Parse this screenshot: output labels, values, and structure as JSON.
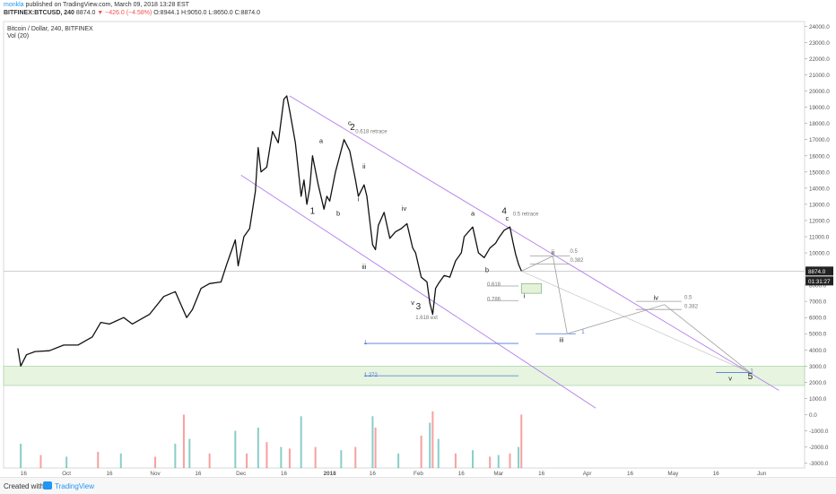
{
  "header": {
    "author": "monkla",
    "published": "published on TradingView.com, March 09, 2018 13:28 EST",
    "symbol": "BITFINEX:BTCUSD, 240",
    "last": "8874.0",
    "change": "▼ −426.0 (−4.58%)",
    "ohlc": "O:8944.1 H:9050.0 L:8650.0 C:8874.0"
  },
  "footer": {
    "created_with": "Created with",
    "brand": "TradingView"
  },
  "colors": {
    "up": "#26a69a",
    "down": "#ef5350",
    "channel": "#b37feb",
    "fib": "#4f7ad6",
    "band": "#e6f4e0",
    "projection": "#9e9e9e",
    "price_line": "#bdbdbd"
  },
  "chart_data": {
    "type": "line",
    "title": "Bitcoin / Dollar, 240, BITFINEX",
    "subtitle": "Vol (20)",
    "price_tag": "8874.0",
    "countdown": "01:31:27",
    "x_ticks": [
      "16",
      "Oct",
      "16",
      "Nov",
      "16",
      "Dec",
      "16",
      "2018",
      "16",
      "Feb",
      "16",
      "Mar",
      "16",
      "Apr",
      "16",
      "May",
      "16",
      "Jun"
    ],
    "x_tick_dates": [
      "2017-09-16",
      "2017-10-01",
      "2017-10-16",
      "2017-11-01",
      "2017-11-16",
      "2017-12-01",
      "2017-12-16",
      "2018-01-01",
      "2018-01-16",
      "2018-02-01",
      "2018-02-16",
      "2018-03-01",
      "2018-03-16",
      "2018-04-01",
      "2018-04-16",
      "2018-05-01",
      "2018-05-16",
      "2018-06-01"
    ],
    "y_ticks": [
      24000,
      23000,
      22000,
      21000,
      20000,
      19000,
      18000,
      17000,
      16000,
      15000,
      14000,
      13000,
      12000,
      11000,
      10000,
      9000,
      8000,
      7000,
      6000,
      5000,
      4000,
      3000,
      2000,
      1000,
      0,
      -1000,
      -2000,
      -3000
    ],
    "y_tick_labels": [
      "24000.0",
      "23000.0",
      "22000.0",
      "21000.0",
      "20000.0",
      "19000.0",
      "18000.0",
      "17000.0",
      "16000.0",
      "15000.0",
      "14000.0",
      "13000.0",
      "12000.0",
      "11000.0",
      "10000.0",
      "9000.0",
      "8000.0",
      "7000.0",
      "6000.0",
      "5000.0",
      "4000.0",
      "3000.0",
      "2000.0",
      "1000.0",
      "0.0",
      "-1000.0",
      "-2000.0",
      "-3000.0"
    ],
    "ylim": [
      -3300,
      24300
    ],
    "price_series": [
      [
        "2017-09-14",
        4100
      ],
      [
        "2017-09-15",
        3000
      ],
      [
        "2017-09-17",
        3700
      ],
      [
        "2017-09-20",
        3900
      ],
      [
        "2017-09-25",
        3950
      ],
      [
        "2017-09-30",
        4300
      ],
      [
        "2017-10-05",
        4300
      ],
      [
        "2017-10-10",
        4800
      ],
      [
        "2017-10-13",
        5700
      ],
      [
        "2017-10-16",
        5600
      ],
      [
        "2017-10-21",
        6000
      ],
      [
        "2017-10-24",
        5600
      ],
      [
        "2017-10-30",
        6200
      ],
      [
        "2017-11-04",
        7300
      ],
      [
        "2017-11-08",
        7600
      ],
      [
        "2017-11-10",
        6800
      ],
      [
        "2017-11-12",
        6000
      ],
      [
        "2017-11-14",
        6500
      ],
      [
        "2017-11-17",
        7800
      ],
      [
        "2017-11-20",
        8100
      ],
      [
        "2017-11-24",
        8200
      ],
      [
        "2017-11-26",
        9300
      ],
      [
        "2017-11-29",
        10800
      ],
      [
        "2017-11-30",
        9200
      ],
      [
        "2017-12-02",
        11000
      ],
      [
        "2017-12-04",
        11500
      ],
      [
        "2017-12-06",
        13800
      ],
      [
        "2017-12-07",
        16500
      ],
      [
        "2017-12-08",
        15000
      ],
      [
        "2017-12-10",
        15300
      ],
      [
        "2017-12-12",
        17500
      ],
      [
        "2017-12-14",
        16800
      ],
      [
        "2017-12-16",
        19500
      ],
      [
        "2017-12-17",
        19700
      ],
      [
        "2017-12-18",
        18800
      ],
      [
        "2017-12-20",
        16800
      ],
      [
        "2017-12-22",
        13500
      ],
      [
        "2017-12-23",
        14500
      ],
      [
        "2017-12-24",
        13000
      ],
      [
        "2017-12-25",
        14000
      ],
      [
        "2017-12-26",
        16000
      ],
      [
        "2017-12-28",
        14200
      ],
      [
        "2017-12-30",
        12700
      ],
      [
        "2017-12-31",
        13500
      ],
      [
        "2018-01-01",
        13200
      ],
      [
        "2018-01-03",
        15000
      ],
      [
        "2018-01-06",
        17000
      ],
      [
        "2018-01-08",
        16300
      ],
      [
        "2018-01-10",
        14500
      ],
      [
        "2018-01-11",
        13500
      ],
      [
        "2018-01-13",
        14200
      ],
      [
        "2018-01-14",
        13500
      ],
      [
        "2018-01-16",
        10500
      ],
      [
        "2018-01-17",
        10200
      ],
      [
        "2018-01-18",
        11700
      ],
      [
        "2018-01-20",
        12500
      ],
      [
        "2018-01-22",
        10900
      ],
      [
        "2018-01-24",
        11300
      ],
      [
        "2018-01-26",
        11500
      ],
      [
        "2018-01-28",
        11800
      ],
      [
        "2018-01-30",
        10300
      ],
      [
        "2018-01-31",
        10000
      ],
      [
        "2018-02-02",
        8500
      ],
      [
        "2018-02-04",
        8200
      ],
      [
        "2018-02-05",
        6900
      ],
      [
        "2018-02-06",
        6200
      ],
      [
        "2018-02-07",
        7800
      ],
      [
        "2018-02-08",
        8100
      ],
      [
        "2018-02-10",
        8600
      ],
      [
        "2018-02-12",
        8500
      ],
      [
        "2018-02-14",
        9500
      ],
      [
        "2018-02-16",
        10000
      ],
      [
        "2018-02-17",
        11000
      ],
      [
        "2018-02-20",
        11600
      ],
      [
        "2018-02-22",
        10000
      ],
      [
        "2018-02-24",
        9700
      ],
      [
        "2018-02-26",
        10300
      ],
      [
        "2018-02-28",
        10600
      ],
      [
        "2018-03-01",
        10900
      ],
      [
        "2018-03-03",
        11400
      ],
      [
        "2018-03-05",
        11600
      ],
      [
        "2018-03-06",
        10700
      ],
      [
        "2018-03-07",
        9900
      ],
      [
        "2018-03-08",
        9300
      ],
      [
        "2018-03-09",
        8874
      ]
    ],
    "volume_series": [
      [
        "2017-09-15",
        1500
      ],
      [
        "2017-09-22",
        800
      ],
      [
        "2017-10-01",
        700
      ],
      [
        "2017-10-12",
        1000
      ],
      [
        "2017-10-20",
        900
      ],
      [
        "2017-11-01",
        700
      ],
      [
        "2017-11-08",
        1500
      ],
      [
        "2017-11-11",
        3300
      ],
      [
        "2017-11-13",
        1800
      ],
      [
        "2017-11-20",
        900
      ],
      [
        "2017-11-29",
        2300
      ],
      [
        "2017-12-03",
        900
      ],
      [
        "2017-12-07",
        2500
      ],
      [
        "2017-12-10",
        1600
      ],
      [
        "2017-12-15",
        1300
      ],
      [
        "2017-12-18",
        1200
      ],
      [
        "2017-12-22",
        3200
      ],
      [
        "2017-12-27",
        1300
      ],
      [
        "2018-01-05",
        1100
      ],
      [
        "2018-01-10",
        1300
      ],
      [
        "2018-01-16",
        3200
      ],
      [
        "2018-01-17",
        2500
      ],
      [
        "2018-01-25",
        900
      ],
      [
        "2018-02-02",
        2000
      ],
      [
        "2018-02-05",
        2800
      ],
      [
        "2018-02-06",
        3500
      ],
      [
        "2018-02-08",
        1800
      ],
      [
        "2018-02-14",
        900
      ],
      [
        "2018-02-20",
        1100
      ],
      [
        "2018-02-26",
        700
      ],
      [
        "2018-03-01",
        800
      ],
      [
        "2018-03-05",
        900
      ],
      [
        "2018-03-08",
        1300
      ],
      [
        "2018-03-09",
        3300
      ]
    ],
    "wave_labels": [
      {
        "text": "1",
        "date": "2017-12-26",
        "price": 12400,
        "big": true
      },
      {
        "text": "a",
        "date": "2017-12-29",
        "price": 16800
      },
      {
        "text": "b",
        "date": "2018-01-04",
        "price": 12300
      },
      {
        "text": "c",
        "date": "2018-01-08",
        "price": 17900
      },
      {
        "text": "2",
        "date": "2018-01-09",
        "price": 17600,
        "big": true
      },
      {
        "text": "i",
        "date": "2018-01-11",
        "price": 13200
      },
      {
        "text": "ii",
        "date": "2018-01-13",
        "price": 15200
      },
      {
        "text": "iii",
        "date": "2018-01-13",
        "price": 9000
      },
      {
        "text": "iv",
        "date": "2018-01-27",
        "price": 12600
      },
      {
        "text": "v",
        "date": "2018-01-30",
        "price": 6800
      },
      {
        "text": "3",
        "date": "2018-02-01",
        "price": 6500,
        "big": true
      },
      {
        "text": "a",
        "date": "2018-02-20",
        "price": 12300
      },
      {
        "text": "b",
        "date": "2018-02-25",
        "price": 8800
      },
      {
        "text": "4",
        "date": "2018-03-03",
        "price": 12400,
        "big": true
      },
      {
        "text": "c",
        "date": "2018-03-04",
        "price": 12000
      },
      {
        "text": "i",
        "date": "2018-03-10",
        "price": 7200
      },
      {
        "text": "ii",
        "date": "2018-03-20",
        "price": 9900
      },
      {
        "text": "iii",
        "date": "2018-03-23",
        "price": 4500
      },
      {
        "text": "iv",
        "date": "2018-04-25",
        "price": 7100
      },
      {
        "text": "v",
        "date": "2018-05-21",
        "price": 2100
      },
      {
        "text": "5",
        "date": "2018-05-28",
        "price": 2200,
        "big": true
      }
    ],
    "annotations": [
      {
        "text": "0.618 retrace",
        "date": "2018-01-10",
        "price": 17400
      },
      {
        "text": "0.5 retrace",
        "date": "2018-03-06",
        "price": 12300
      },
      {
        "text": "1.618 ext",
        "date": "2018-01-31",
        "price": 5900
      },
      {
        "text": "0.5",
        "date": "2018-03-26",
        "price": 10000
      },
      {
        "text": "0.382",
        "date": "2018-03-26",
        "price": 9450
      },
      {
        "text": "0.618",
        "date": "2018-02-25",
        "price": 7950
      },
      {
        "text": "0.786",
        "date": "2018-02-25",
        "price": 7050
      },
      {
        "text": "0.5",
        "date": "2018-05-05",
        "price": 7150
      },
      {
        "text": "0.382",
        "date": "2018-05-05",
        "price": 6600
      },
      {
        "text": "1",
        "date": "2018-01-13",
        "price": 4350
      },
      {
        "text": "1.272",
        "date": "2018-01-13",
        "price": 2350
      },
      {
        "text": "1",
        "date": "2018-03-30",
        "price": 5000
      },
      {
        "text": "1",
        "date": "2018-05-28",
        "price": 2600
      }
    ],
    "channel_lines": [
      [
        [
          "2017-12-18",
          19700
        ],
        [
          "2018-06-07",
          1500
        ]
      ],
      [
        [
          "2017-12-01",
          14800
        ],
        [
          "2018-04-04",
          400
        ]
      ]
    ],
    "fib_lines": [
      {
        "from": "2018-03-12",
        "to": "2018-03-26",
        "price": 9800,
        "color": "#9e9e9e"
      },
      {
        "from": "2018-03-12",
        "to": "2018-03-26",
        "price": 9300,
        "color": "#9e9e9e"
      },
      {
        "from": "2018-02-25",
        "to": "2018-03-08",
        "price": 7950,
        "color": "#9e9e9e"
      },
      {
        "from": "2018-02-25",
        "to": "2018-03-08",
        "price": 7050,
        "color": "#9e9e9e"
      },
      {
        "from": "2018-04-18",
        "to": "2018-05-04",
        "price": 7000,
        "color": "#9e9e9e"
      },
      {
        "from": "2018-04-18",
        "to": "2018-05-04",
        "price": 6500,
        "color": "#9e9e9e"
      },
      {
        "from": "2018-01-13",
        "to": "2018-03-08",
        "price": 4400,
        "color": "#4f7ad6"
      },
      {
        "from": "2018-01-13",
        "to": "2018-03-08",
        "price": 2400,
        "color": "#4f7ad6"
      },
      {
        "from": "2018-03-14",
        "to": "2018-03-28",
        "price": 5000,
        "color": "#4f7ad6"
      },
      {
        "from": "2018-05-16",
        "to": "2018-05-28",
        "price": 2600,
        "color": "#4f7ad6"
      }
    ],
    "projection_path": [
      [
        "2018-03-09",
        8874
      ],
      [
        "2018-03-20",
        9800
      ],
      [
        "2018-03-25",
        5000
      ],
      [
        "2018-04-28",
        6800
      ],
      [
        "2018-05-28",
        2600
      ]
    ],
    "projection_path2": [
      [
        "2018-03-09",
        8874
      ],
      [
        "2018-05-28",
        2600
      ]
    ],
    "support_zone": {
      "low": 1800,
      "high": 3000
    },
    "target_box": {
      "from": "2018-03-09",
      "to": "2018-03-16",
      "low": 7500,
      "high": 8100
    },
    "current_price": 8874
  }
}
